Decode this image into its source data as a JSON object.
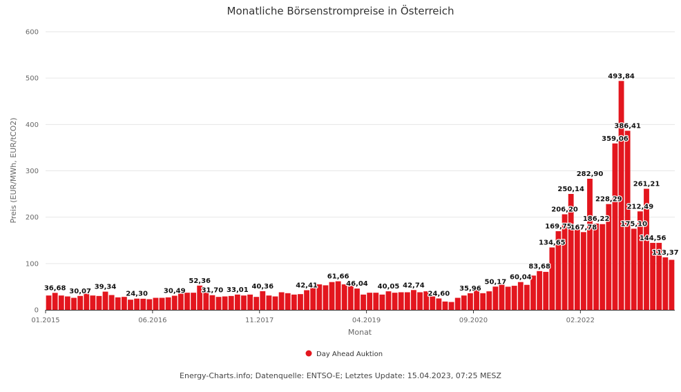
{
  "chart_data": {
    "type": "bar",
    "title": "Monatliche Börsenstrompreise in Österreich",
    "xlabel": "Monat",
    "ylabel": "Preis (EUR/MWh, EUR/tCO2)",
    "ylim": [
      0,
      600
    ],
    "yticks": [
      "0",
      "100",
      "200",
      "300",
      "400",
      "500",
      "600"
    ],
    "xtick_labels": [
      {
        "index": 0,
        "label": "01.2015"
      },
      {
        "index": 17,
        "label": "06.2016"
      },
      {
        "index": 34,
        "label": "11.2017"
      },
      {
        "index": 51,
        "label": "04.2019"
      },
      {
        "index": 68,
        "label": "09.2020"
      },
      {
        "index": 85,
        "label": "02.2022"
      }
    ],
    "grid": true,
    "legend_position": "bottom-center",
    "color": "#e3161e",
    "series": [
      {
        "name": "Day Ahead Auktion",
        "values": [
          31,
          36.68,
          31,
          29,
          26,
          30.07,
          35,
          31,
          30,
          39.34,
          32,
          27,
          28,
          22,
          24.3,
          24,
          23,
          26,
          26,
          27,
          30.49,
          35,
          37,
          37,
          52.36,
          38,
          31.7,
          28,
          29,
          30,
          33.01,
          31,
          33,
          28,
          40.36,
          31,
          29,
          38,
          36,
          33,
          34,
          42.41,
          48,
          55,
          53,
          60,
          61.66,
          55,
          55,
          46.04,
          33,
          37,
          37,
          33,
          40.05,
          37,
          38,
          38,
          42.74,
          38,
          40,
          29,
          24.6,
          18,
          17,
          26,
          31,
          35.96,
          44,
          36,
          40,
          50.17,
          56,
          50,
          52,
          60.04,
          54,
          74,
          83.68,
          82,
          134.65,
          169.75,
          206.2,
          250.14,
          178,
          167.78,
          282.9,
          186.22,
          185,
          228.29,
          359.06,
          493.84,
          386.41,
          175.1,
          212.49,
          261.21,
          144.56,
          144.56,
          113.37,
          108
        ]
      }
    ],
    "data_labels": [
      {
        "index": 1,
        "text": "36,68"
      },
      {
        "index": 5,
        "text": "30,07"
      },
      {
        "index": 9,
        "text": "39,34"
      },
      {
        "index": 14,
        "text": "24,30"
      },
      {
        "index": 20,
        "text": "30,49"
      },
      {
        "index": 24,
        "text": "52,36"
      },
      {
        "index": 26,
        "text": "31,70"
      },
      {
        "index": 30,
        "text": "33,01"
      },
      {
        "index": 34,
        "text": "40,36"
      },
      {
        "index": 41,
        "text": "42,41"
      },
      {
        "index": 46,
        "text": "61,66"
      },
      {
        "index": 49,
        "text": "46,04"
      },
      {
        "index": 54,
        "text": "40,05"
      },
      {
        "index": 58,
        "text": "42,74"
      },
      {
        "index": 62,
        "text": "24,60"
      },
      {
        "index": 67,
        "text": "35,96"
      },
      {
        "index": 71,
        "text": "50,17"
      },
      {
        "index": 75,
        "text": "60,04"
      },
      {
        "index": 78,
        "text": "83,68"
      },
      {
        "index": 80,
        "text": "134,65"
      },
      {
        "index": 81,
        "text": "169,75"
      },
      {
        "index": 82,
        "text": "206,20"
      },
      {
        "index": 83,
        "text": "250,14"
      },
      {
        "index": 85,
        "text": "167,78"
      },
      {
        "index": 86,
        "text": "282,90"
      },
      {
        "index": 87,
        "text": "186,22"
      },
      {
        "index": 89,
        "text": "228,29"
      },
      {
        "index": 90,
        "text": "359,06"
      },
      {
        "index": 91,
        "text": "493,84"
      },
      {
        "index": 92,
        "text": "386,41"
      },
      {
        "index": 93,
        "text": "175,10"
      },
      {
        "index": 94,
        "text": "212,49"
      },
      {
        "index": 95,
        "text": "261,21"
      },
      {
        "index": 96,
        "text": "144,56"
      },
      {
        "index": 98,
        "text": "113,37"
      }
    ],
    "credits": "Energy-Charts.info; Datenquelle: ENTSO-E; Letztes Update: 15.04.2023, 07:25 MESZ"
  }
}
